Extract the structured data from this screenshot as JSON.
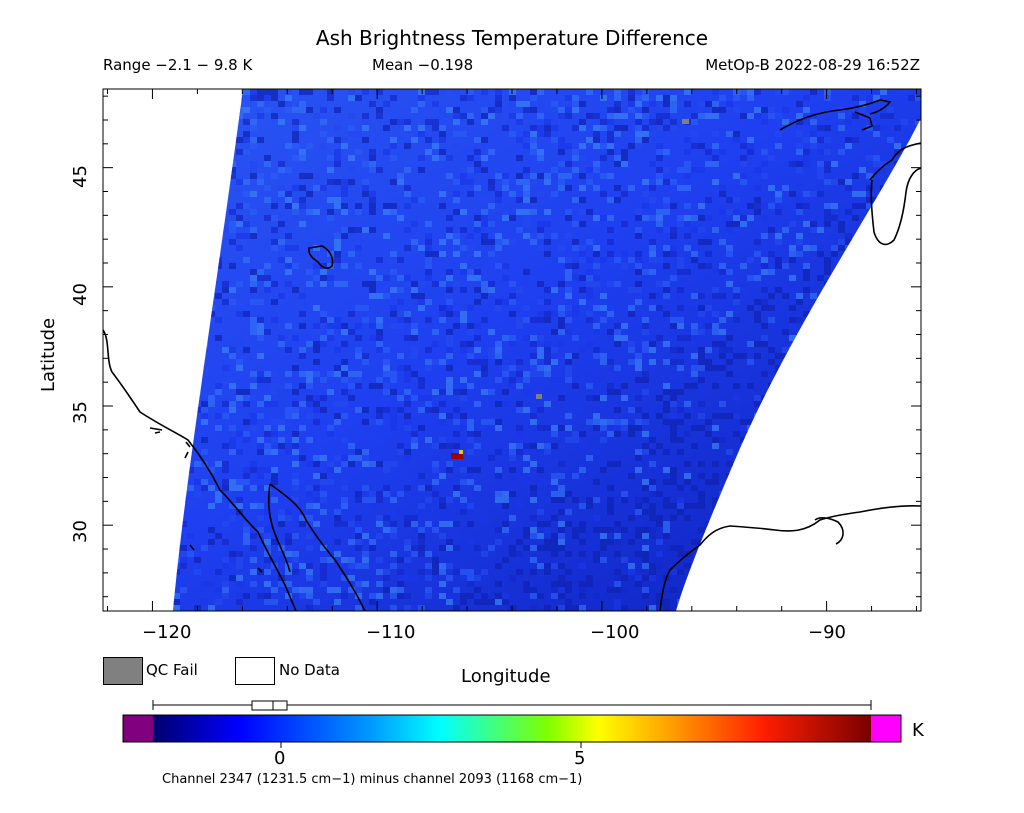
{
  "title": "Ash Brightness Temperature Difference",
  "range_text": "Range −2.1 − 9.8 K",
  "mean_text": "Mean −0.198",
  "satellite_time": "MetOp-B 2022-08-29 16:52Z",
  "map": {
    "x_axis_label": "Longitude",
    "y_axis_label": "Latitude",
    "x_ticks": [
      "−120",
      "−110",
      "−100",
      "−90"
    ],
    "y_ticks": [
      "45",
      "40",
      "35",
      "30"
    ],
    "lon_range": [
      -122.2,
      -85.8
    ],
    "lat_range": [
      26.4,
      48.3
    ],
    "colors": {
      "swath_base": "#1e3ff0",
      "swath_dark": "#0d1fb8",
      "swath_light": "#3a82f5"
    }
  },
  "legend": {
    "qc_fail_label": "QC Fail",
    "no_data_label": "No Data",
    "qc_fail_color": "#808080",
    "no_data_color": "#ffffff"
  },
  "colorbar": {
    "unit": "K",
    "tick_labels": [
      "0",
      "5"
    ],
    "range": [
      -2.1,
      9.8
    ],
    "under_color": "#800080",
    "over_color": "#ff00ff",
    "box_plot": {
      "min": -2.1,
      "q1": -0.5,
      "median": -0.15,
      "q3": 0.1,
      "max": 9.8
    }
  },
  "footer_text": "Channel 2347 (1231.5 cm−1) minus channel 2093 (1168 cm−1)"
}
